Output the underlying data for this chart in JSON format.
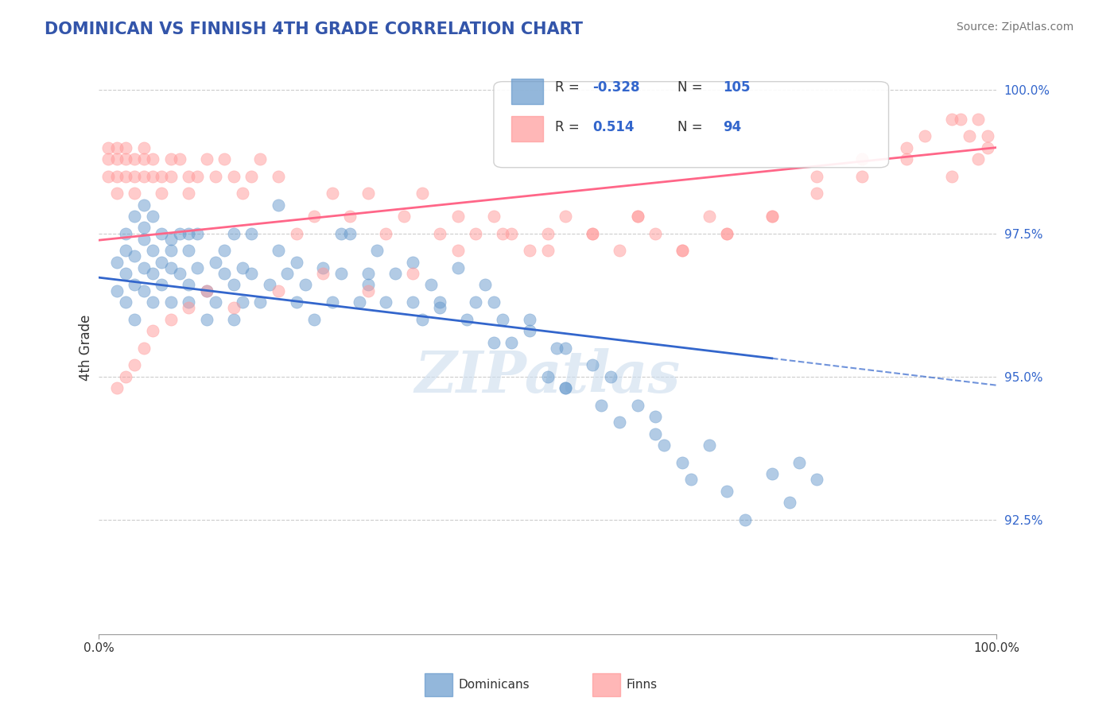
{
  "title": "DOMINICAN VS FINNISH 4TH GRADE CORRELATION CHART",
  "source": "Source: ZipAtlas.com",
  "xlabel_ticks": [
    "0.0%",
    "100.0%"
  ],
  "ylabel_label": "4th Grade",
  "yticks": [
    0.925,
    0.95,
    0.975,
    1.0
  ],
  "ytick_labels": [
    "92.5%",
    "95.0%",
    "97.5%",
    "100.0%"
  ],
  "xlim": [
    0.0,
    1.0
  ],
  "ylim": [
    0.905,
    1.005
  ],
  "blue_color": "#6699CC",
  "pink_color": "#FF9999",
  "blue_line_color": "#3366CC",
  "pink_line_color": "#FF6688",
  "blue_R": -0.328,
  "blue_N": 105,
  "pink_R": 0.514,
  "pink_N": 94,
  "watermark": "ZIPatlas",
  "watermark_color": "#CCDDEE",
  "legend_blue_label": "Dominicans",
  "legend_pink_label": "Finns",
  "background_color": "#FFFFFF",
  "grid_color": "#CCCCCC",
  "title_color": "#3355AA",
  "source_color": "#777777",
  "blue_x": [
    0.02,
    0.02,
    0.03,
    0.03,
    0.03,
    0.03,
    0.04,
    0.04,
    0.04,
    0.04,
    0.05,
    0.05,
    0.05,
    0.05,
    0.06,
    0.06,
    0.06,
    0.07,
    0.07,
    0.07,
    0.08,
    0.08,
    0.08,
    0.09,
    0.09,
    0.1,
    0.1,
    0.1,
    0.11,
    0.11,
    0.12,
    0.12,
    0.13,
    0.13,
    0.14,
    0.14,
    0.15,
    0.15,
    0.16,
    0.16,
    0.17,
    0.17,
    0.18,
    0.19,
    0.2,
    0.21,
    0.22,
    0.22,
    0.23,
    0.24,
    0.25,
    0.26,
    0.27,
    0.28,
    0.29,
    0.3,
    0.31,
    0.32,
    0.33,
    0.35,
    0.36,
    0.37,
    0.38,
    0.4,
    0.41,
    0.42,
    0.43,
    0.44,
    0.45,
    0.46,
    0.48,
    0.5,
    0.51,
    0.52,
    0.55,
    0.56,
    0.57,
    0.58,
    0.6,
    0.62,
    0.63,
    0.65,
    0.66,
    0.68,
    0.7,
    0.72,
    0.75,
    0.77,
    0.78,
    0.8,
    0.52,
    0.48,
    0.35,
    0.27,
    0.2,
    0.15,
    0.1,
    0.08,
    0.05,
    0.06,
    0.52,
    0.38,
    0.44,
    0.3,
    0.62
  ],
  "blue_y": [
    0.97,
    0.965,
    0.972,
    0.968,
    0.975,
    0.963,
    0.971,
    0.966,
    0.978,
    0.96,
    0.974,
    0.969,
    0.965,
    0.976,
    0.968,
    0.972,
    0.963,
    0.97,
    0.966,
    0.975,
    0.969,
    0.963,
    0.972,
    0.968,
    0.975,
    0.966,
    0.972,
    0.963,
    0.969,
    0.975,
    0.965,
    0.96,
    0.97,
    0.963,
    0.968,
    0.972,
    0.966,
    0.96,
    0.969,
    0.963,
    0.968,
    0.975,
    0.963,
    0.966,
    0.972,
    0.968,
    0.963,
    0.97,
    0.966,
    0.96,
    0.969,
    0.963,
    0.968,
    0.975,
    0.963,
    0.966,
    0.972,
    0.963,
    0.968,
    0.963,
    0.96,
    0.966,
    0.963,
    0.969,
    0.96,
    0.963,
    0.966,
    0.963,
    0.96,
    0.956,
    0.96,
    0.95,
    0.955,
    0.948,
    0.952,
    0.945,
    0.95,
    0.942,
    0.945,
    0.94,
    0.938,
    0.935,
    0.932,
    0.938,
    0.93,
    0.925,
    0.933,
    0.928,
    0.935,
    0.932,
    0.955,
    0.958,
    0.97,
    0.975,
    0.98,
    0.975,
    0.975,
    0.974,
    0.98,
    0.978,
    0.948,
    0.962,
    0.956,
    0.968,
    0.943
  ],
  "pink_x": [
    0.01,
    0.01,
    0.01,
    0.02,
    0.02,
    0.02,
    0.02,
    0.03,
    0.03,
    0.03,
    0.04,
    0.04,
    0.04,
    0.05,
    0.05,
    0.05,
    0.06,
    0.06,
    0.07,
    0.07,
    0.08,
    0.08,
    0.09,
    0.1,
    0.1,
    0.11,
    0.12,
    0.13,
    0.14,
    0.15,
    0.16,
    0.17,
    0.18,
    0.2,
    0.22,
    0.24,
    0.26,
    0.28,
    0.3,
    0.32,
    0.34,
    0.36,
    0.38,
    0.4,
    0.42,
    0.44,
    0.46,
    0.48,
    0.5,
    0.52,
    0.55,
    0.58,
    0.6,
    0.62,
    0.65,
    0.68,
    0.7,
    0.75,
    0.8,
    0.85,
    0.9,
    0.92,
    0.95,
    0.96,
    0.97,
    0.98,
    0.99,
    0.99,
    0.98,
    0.95,
    0.9,
    0.85,
    0.8,
    0.75,
    0.7,
    0.65,
    0.6,
    0.55,
    0.5,
    0.45,
    0.4,
    0.35,
    0.3,
    0.25,
    0.2,
    0.15,
    0.12,
    0.1,
    0.08,
    0.06,
    0.05,
    0.04,
    0.03,
    0.02
  ],
  "pink_y": [
    0.988,
    0.985,
    0.99,
    0.988,
    0.985,
    0.982,
    0.99,
    0.988,
    0.985,
    0.99,
    0.985,
    0.988,
    0.982,
    0.988,
    0.985,
    0.99,
    0.985,
    0.988,
    0.985,
    0.982,
    0.988,
    0.985,
    0.988,
    0.985,
    0.982,
    0.985,
    0.988,
    0.985,
    0.988,
    0.985,
    0.982,
    0.985,
    0.988,
    0.985,
    0.975,
    0.978,
    0.982,
    0.978,
    0.982,
    0.975,
    0.978,
    0.982,
    0.975,
    0.978,
    0.975,
    0.978,
    0.975,
    0.972,
    0.975,
    0.978,
    0.975,
    0.972,
    0.978,
    0.975,
    0.972,
    0.978,
    0.975,
    0.978,
    0.985,
    0.988,
    0.99,
    0.992,
    0.995,
    0.995,
    0.992,
    0.995,
    0.992,
    0.99,
    0.988,
    0.985,
    0.988,
    0.985,
    0.982,
    0.978,
    0.975,
    0.972,
    0.978,
    0.975,
    0.972,
    0.975,
    0.972,
    0.968,
    0.965,
    0.968,
    0.965,
    0.962,
    0.965,
    0.962,
    0.96,
    0.958,
    0.955,
    0.952,
    0.95,
    0.948
  ]
}
